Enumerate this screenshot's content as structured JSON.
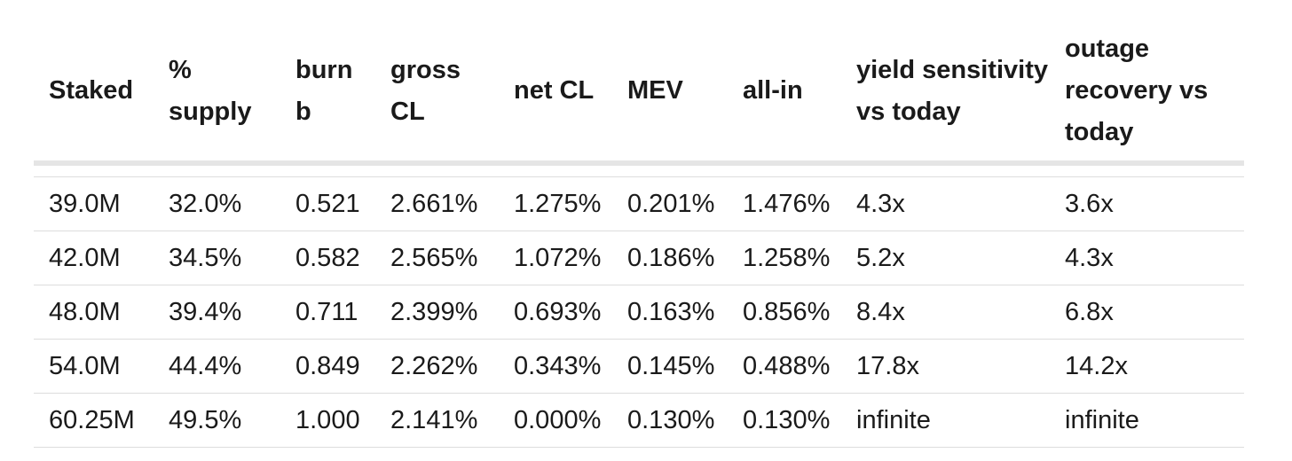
{
  "table": {
    "headers": [
      "Staked",
      "% supply",
      "burn b",
      "gross CL",
      "net CL",
      "MEV",
      "all-in",
      "yield sensitivity vs today",
      "outage recovery vs today"
    ],
    "rows": [
      [
        "39.0M",
        "32.0%",
        "0.521",
        "2.661%",
        "1.275%",
        "0.201%",
        "1.476%",
        "4.3x",
        "3.6x"
      ],
      [
        "42.0M",
        "34.5%",
        "0.582",
        "2.565%",
        "1.072%",
        "0.186%",
        "1.258%",
        "5.2x",
        "4.3x"
      ],
      [
        "48.0M",
        "39.4%",
        "0.711",
        "2.399%",
        "0.693%",
        "0.163%",
        "0.856%",
        "8.4x",
        "6.8x"
      ],
      [
        "54.0M",
        "44.4%",
        "0.849",
        "2.262%",
        "0.343%",
        "0.145%",
        "0.488%",
        "17.8x",
        "14.2x"
      ],
      [
        "60.25M",
        "49.5%",
        "1.000",
        "2.141%",
        "0.000%",
        "0.130%",
        "0.130%",
        "infinite",
        "infinite"
      ]
    ]
  },
  "colors": {
    "text": "#1a1a1a",
    "divider": "#dddddd",
    "header_band": "#e5e5e5"
  }
}
